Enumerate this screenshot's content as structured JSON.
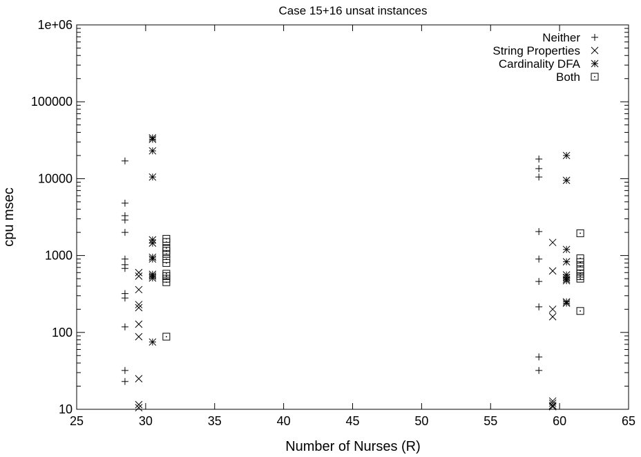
{
  "chart_data": {
    "type": "scatter",
    "title": "Case 15+16 unsat instances",
    "xlabel": "Number of Nurses (R)",
    "ylabel": "cpu msec",
    "xlim": [
      25,
      65
    ],
    "ylim": [
      10,
      1000000
    ],
    "yscale": "log",
    "x_ticks": [
      25,
      30,
      35,
      40,
      45,
      50,
      55,
      60,
      65
    ],
    "x_tick_labels": [
      "25",
      "30",
      "35",
      "40",
      "45",
      "50",
      "55",
      "60",
      "65"
    ],
    "y_ticks": [
      10,
      100,
      1000,
      10000,
      100000,
      1000000
    ],
    "y_tick_labels": [
      "10",
      "100",
      "1000",
      "10000",
      "100000",
      "1e+06"
    ],
    "grid": false,
    "legend_position": "top-right",
    "series": [
      {
        "name": "Neither",
        "marker": "plus",
        "points": [
          [
            28.5,
            17000
          ],
          [
            28.5,
            4800
          ],
          [
            28.5,
            3300
          ],
          [
            28.5,
            2900
          ],
          [
            28.5,
            2000
          ],
          [
            28.5,
            900
          ],
          [
            28.5,
            760
          ],
          [
            28.5,
            680
          ],
          [
            28.5,
            320
          ],
          [
            28.5,
            280
          ],
          [
            28.5,
            118
          ],
          [
            28.5,
            32
          ],
          [
            28.5,
            23
          ],
          [
            58.5,
            18000
          ],
          [
            58.5,
            13500
          ],
          [
            58.5,
            10500
          ],
          [
            58.5,
            2050
          ],
          [
            58.5,
            900
          ],
          [
            58.5,
            460
          ],
          [
            58.5,
            215
          ],
          [
            58.5,
            48
          ],
          [
            58.5,
            32
          ]
        ]
      },
      {
        "name": "String Properties",
        "marker": "cross",
        "points": [
          [
            29.5,
            600
          ],
          [
            29.5,
            540
          ],
          [
            29.5,
            360
          ],
          [
            29.5,
            230
          ],
          [
            29.5,
            210
          ],
          [
            29.5,
            128
          ],
          [
            29.5,
            88
          ],
          [
            29.5,
            25
          ],
          [
            29.5,
            11.5
          ],
          [
            29.5,
            10.5
          ],
          [
            59.5,
            1480
          ],
          [
            59.5,
            630
          ],
          [
            59.5,
            200
          ],
          [
            59.5,
            160
          ],
          [
            59.5,
            12.8
          ],
          [
            59.5,
            12
          ],
          [
            59.5,
            11.2
          ],
          [
            59.5,
            10.8
          ]
        ]
      },
      {
        "name": "Cardinality DFA",
        "marker": "star",
        "points": [
          [
            30.5,
            34000
          ],
          [
            30.5,
            32500
          ],
          [
            30.5,
            23000
          ],
          [
            30.5,
            10500
          ],
          [
            30.5,
            1600
          ],
          [
            30.5,
            1450
          ],
          [
            30.5,
            950
          ],
          [
            30.5,
            900
          ],
          [
            30.5,
            570
          ],
          [
            30.5,
            540
          ],
          [
            30.5,
            510
          ],
          [
            30.5,
            75
          ],
          [
            60.5,
            20000
          ],
          [
            60.5,
            9500
          ],
          [
            60.5,
            1200
          ],
          [
            60.5,
            830
          ],
          [
            60.5,
            560
          ],
          [
            60.5,
            520
          ],
          [
            60.5,
            490
          ],
          [
            60.5,
            470
          ],
          [
            60.5,
            250
          ],
          [
            60.5,
            240
          ]
        ]
      },
      {
        "name": "Both",
        "marker": "box",
        "points": [
          [
            31.5,
            1650
          ],
          [
            31.5,
            1500
          ],
          [
            31.5,
            1250
          ],
          [
            31.5,
            1150
          ],
          [
            31.5,
            1050
          ],
          [
            31.5,
            900
          ],
          [
            31.5,
            800
          ],
          [
            31.5,
            580
          ],
          [
            31.5,
            540
          ],
          [
            31.5,
            500
          ],
          [
            31.5,
            450
          ],
          [
            31.5,
            88
          ],
          [
            61.5,
            1950
          ],
          [
            61.5,
            920
          ],
          [
            61.5,
            820
          ],
          [
            61.5,
            720
          ],
          [
            61.5,
            640
          ],
          [
            61.5,
            580
          ],
          [
            61.5,
            540
          ],
          [
            61.5,
            500
          ],
          [
            61.5,
            190
          ]
        ]
      }
    ]
  }
}
